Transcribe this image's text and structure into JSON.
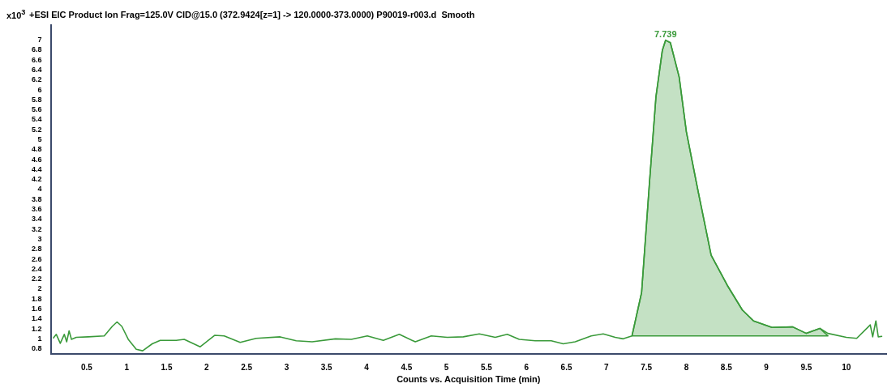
{
  "chart_data": {
    "type": "line",
    "title": "+ESI EIC Product Ion Frag=125.0V CID@15.0 (372.9424[z=1] -> 120.0000-373.0000) P90019-r003.d  Smooth",
    "xlabel": "Counts vs. Acquisition Time (min)",
    "ylabel": "x10$^{3}$",
    "xlim": [
      0.05,
      10.5
    ],
    "xticks": [
      0.5,
      1,
      1.5,
      2,
      2.5,
      3,
      3.5,
      4,
      4.5,
      5,
      5.5,
      6,
      6.5,
      7,
      7.5,
      8,
      8.5,
      9,
      9.5,
      10
    ],
    "ylim": [
      0.7,
      7.3
    ],
    "yticks": [
      0.8,
      1,
      1.2,
      1.4,
      1.6,
      1.8,
      2,
      2.2,
      2.4,
      2.6,
      2.8,
      3,
      3.2,
      3.4,
      3.6,
      3.8,
      4,
      4.2,
      4.4,
      4.6,
      4.8,
      5,
      5.2,
      5.4,
      5.6,
      5.8,
      6,
      6.2,
      6.4,
      6.6,
      6.8,
      7
    ],
    "grid": false,
    "legend": false,
    "marker": "none",
    "line_style": "solid",
    "annotations": [
      {
        "text": "7.739",
        "x": 7.739,
        "y": 7.0
      }
    ],
    "series": [
      {
        "color": "#3a9a3a",
        "x": [
          0.08,
          0.12,
          0.17,
          0.22,
          0.25,
          0.28,
          0.31,
          0.37,
          0.52,
          0.72,
          0.82,
          0.88,
          0.94,
          1.02,
          1.12,
          1.2,
          1.32,
          1.42,
          1.62,
          1.72,
          1.92,
          2.1,
          2.22,
          2.42,
          2.62,
          2.92,
          3.12,
          3.32,
          3.61,
          3.81,
          4.01,
          4.21,
          4.41,
          4.61,
          4.81,
          5.01,
          5.21,
          5.41,
          5.61,
          5.76,
          5.91,
          6.11,
          6.31,
          6.46,
          6.61,
          6.81,
          6.96,
          7.11,
          7.21,
          7.32,
          7.44,
          7.54,
          7.62,
          7.7,
          7.74,
          7.8,
          7.91,
          8.0,
          8.14,
          8.31,
          8.51,
          8.7,
          8.84,
          9.07,
          9.33,
          9.5,
          9.67,
          9.77,
          10.0,
          10.13,
          10.3,
          10.33,
          10.37,
          10.4,
          10.45
        ],
        "values": [
          1.01,
          1.09,
          0.91,
          1.09,
          0.94,
          1.16,
          0.99,
          1.03,
          1.04,
          1.06,
          1.25,
          1.34,
          1.25,
          0.99,
          0.79,
          0.76,
          0.9,
          0.97,
          0.97,
          0.99,
          0.84,
          1.07,
          1.06,
          0.93,
          1.01,
          1.04,
          0.96,
          0.94,
          1.0,
          0.99,
          1.06,
          0.97,
          1.09,
          0.94,
          1.06,
          1.03,
          1.04,
          1.1,
          1.03,
          1.09,
          0.99,
          0.96,
          0.96,
          0.9,
          0.94,
          1.06,
          1.1,
          1.03,
          1.0,
          1.06,
          1.93,
          4.17,
          5.87,
          6.8,
          7.0,
          6.95,
          6.26,
          5.16,
          4.02,
          2.68,
          2.08,
          1.58,
          1.36,
          1.23,
          1.24,
          1.11,
          1.21,
          1.11,
          1.03,
          1.01,
          1.28,
          1.04,
          1.36,
          1.04,
          1.05
        ]
      },
      {
        "type": "area",
        "color": "#3a9a3a",
        "x": [
          7.32,
          7.44,
          7.54,
          7.62,
          7.7,
          7.74,
          7.8,
          7.91,
          8.0,
          8.14,
          8.31,
          8.51,
          8.7,
          8.84,
          9.07,
          9.33,
          9.5,
          9.67,
          9.77,
          7.32
        ],
        "values": [
          1.06,
          1.93,
          4.17,
          5.87,
          6.8,
          7.0,
          6.95,
          6.26,
          5.16,
          4.02,
          2.68,
          2.08,
          1.58,
          1.36,
          1.23,
          1.24,
          1.11,
          1.21,
          1.06,
          1.06
        ]
      }
    ]
  }
}
